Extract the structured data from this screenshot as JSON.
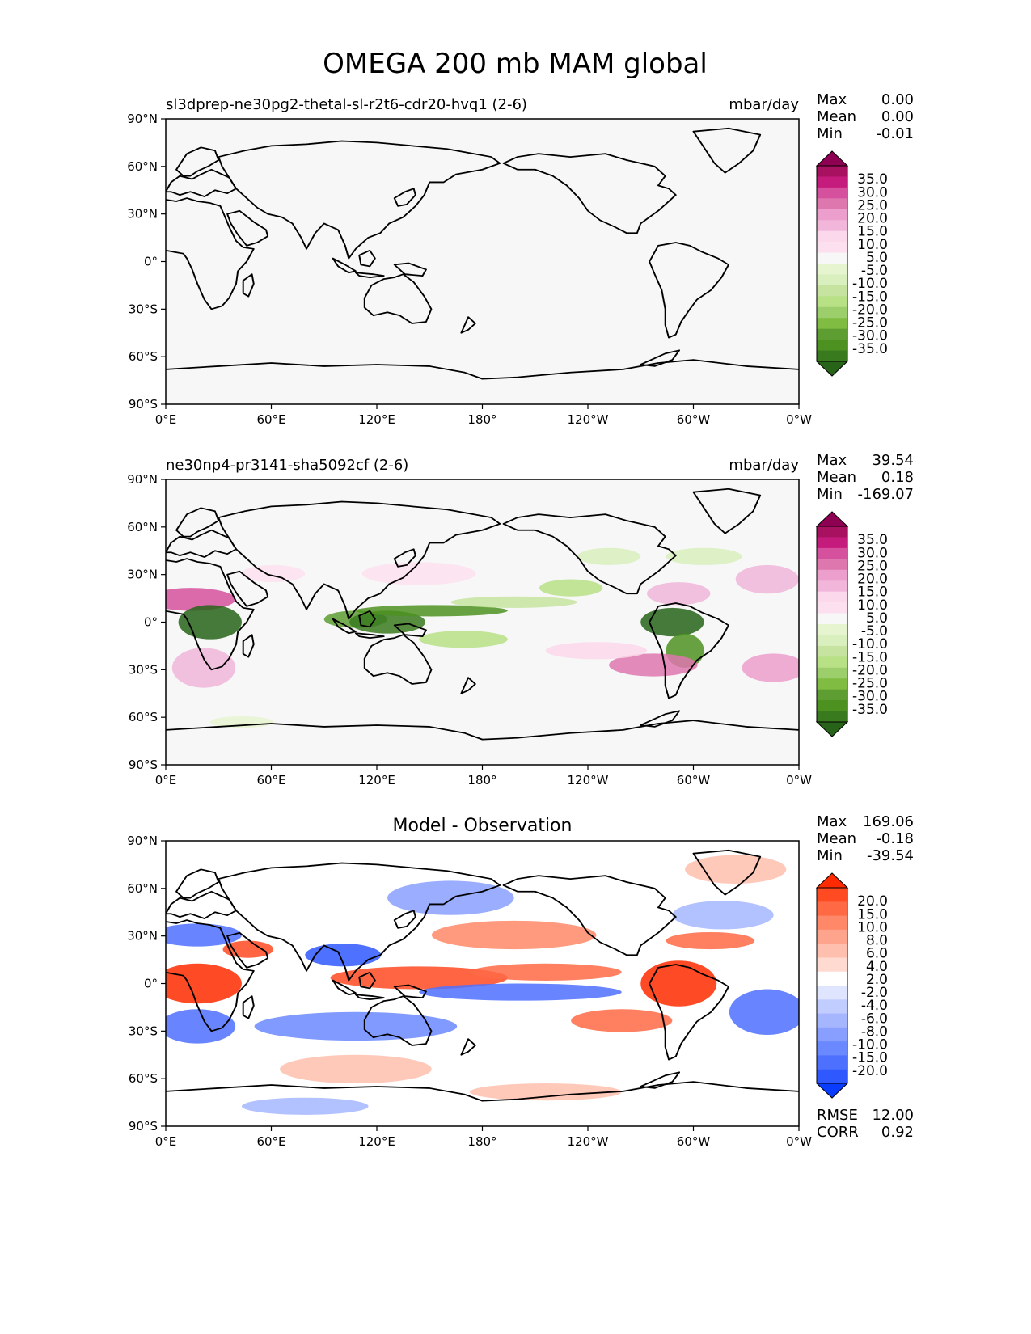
{
  "title": "OMEGA 200 mb MAM global",
  "axes": {
    "lat_ticks": [
      "90°N",
      "60°N",
      "30°N",
      "0°",
      "30°S",
      "60°S",
      "90°S"
    ],
    "lon_ticks": [
      "0°E",
      "60°E",
      "120°E",
      "180°",
      "120°W",
      "60°W",
      "0°W"
    ]
  },
  "panels": [
    {
      "id": "test",
      "left_title": "sl3dprep-ne30pg2-thetal-sl-r2t6-cdr20-hvq1 (2-6)",
      "center_title": "",
      "units": "mbar/day",
      "stats": [
        {
          "label": "Max",
          "value": "0.00"
        },
        {
          "label": "Mean",
          "value": "0.00"
        },
        {
          "label": "Min",
          "value": "-0.01"
        }
      ],
      "colorbar_labels": [
        "35.0",
        "30.0",
        "25.0",
        "20.0",
        "15.0",
        "10.0",
        "5.0",
        "-5.0",
        "-10.0",
        "-15.0",
        "-20.0",
        "-25.0",
        "-30.0",
        "-35.0"
      ],
      "colorbar_colors": [
        "#8e0152",
        "#a8115f",
        "#c51b7d",
        "#d6519d",
        "#de77ae",
        "#ec9fcc",
        "#f1b6da",
        "#fbd8eb",
        "#fde0ef",
        "#f7f7f7",
        "#e6f5d0",
        "#d9efbd",
        "#c6e4a0",
        "#b8e186",
        "#9ccf6b",
        "#7fbc41",
        "#5e9d32",
        "#4d9221",
        "#3a7a1f",
        "#276419"
      ],
      "extra_stats": []
    },
    {
      "id": "reference",
      "left_title": "ne30np4-pr3141-sha5092cf (2-6)",
      "center_title": "",
      "units": "mbar/day",
      "stats": [
        {
          "label": "Max",
          "value": "39.54"
        },
        {
          "label": "Mean",
          "value": "0.18"
        },
        {
          "label": "Min",
          "value": "-169.07"
        }
      ],
      "colorbar_labels": [
        "35.0",
        "30.0",
        "25.0",
        "20.0",
        "15.0",
        "10.0",
        "5.0",
        "-5.0",
        "-10.0",
        "-15.0",
        "-20.0",
        "-25.0",
        "-30.0",
        "-35.0"
      ],
      "colorbar_colors": [
        "#8e0152",
        "#a8115f",
        "#c51b7d",
        "#d6519d",
        "#de77ae",
        "#ec9fcc",
        "#f1b6da",
        "#fbd8eb",
        "#fde0ef",
        "#f7f7f7",
        "#e6f5d0",
        "#d9efbd",
        "#c6e4a0",
        "#b8e186",
        "#9ccf6b",
        "#7fbc41",
        "#5e9d32",
        "#4d9221",
        "#3a7a1f",
        "#276419"
      ],
      "extra_stats": []
    },
    {
      "id": "difference",
      "left_title": "",
      "center_title": "Model - Observation",
      "units": "",
      "stats": [
        {
          "label": "Max",
          "value": "169.06"
        },
        {
          "label": "Mean",
          "value": "-0.18"
        },
        {
          "label": "Min",
          "value": "-39.54"
        }
      ],
      "colorbar_labels": [
        "20.0",
        "15.0",
        "10.0",
        "8.0",
        "6.0",
        "4.0",
        "2.0",
        "-2.0",
        "-4.0",
        "-6.0",
        "-8.0",
        "-10.0",
        "-15.0",
        "-20.0"
      ],
      "colorbar_colors": [
        "#ff2a00",
        "#ff4a22",
        "#ff6a45",
        "#ff8868",
        "#ffa48c",
        "#ffbfae",
        "#ffdad0",
        "#ffffff",
        "#dfe4ff",
        "#c2cdff",
        "#a5b6ff",
        "#889fff",
        "#6a88ff",
        "#4d70ff",
        "#2f59ff",
        "#0a3cff"
      ],
      "extra_stats": [
        {
          "label": "RMSE",
          "value": "12.00"
        },
        {
          "label": "CORR",
          "value": "0.92"
        }
      ]
    }
  ]
}
